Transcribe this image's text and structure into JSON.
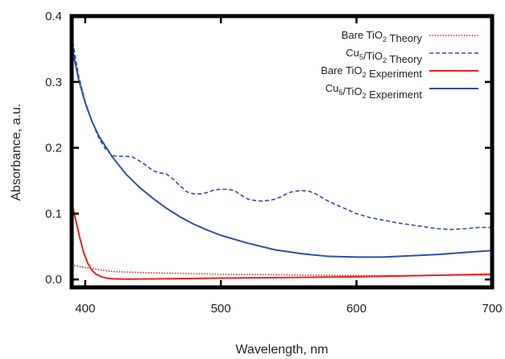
{
  "chart_data": {
    "type": "line",
    "title": "",
    "xlabel": "Wavelength, nm",
    "ylabel": "Absorbance, a.u.",
    "xlim": [
      390,
      700
    ],
    "ylim": [
      -0.012,
      0.4
    ],
    "xticks": [
      400,
      500,
      600,
      700
    ],
    "xtick_labels": [
      "400",
      "500",
      "600",
      "700"
    ],
    "yticks": [
      0.0,
      0.1,
      0.2,
      0.3,
      0.4
    ],
    "ytick_labels": [
      "0.0",
      "0.1",
      "0.2",
      "0.3",
      "0.4"
    ],
    "grid": false,
    "legend_position": "top-right",
    "series": [
      {
        "name": "Bare TiO2 Theory",
        "label_parts": [
          [
            "Bare TiO",
            ""
          ],
          [
            "2",
            "sub"
          ],
          [
            " Theory",
            ""
          ]
        ],
        "color": "#e8221f",
        "style": "dotted",
        "x": [
          390,
          400,
          420,
          450,
          500,
          550,
          600,
          650,
          700
        ],
        "y": [
          0.022,
          0.018,
          0.012,
          0.01,
          0.008,
          0.007,
          0.006,
          0.006,
          0.007
        ]
      },
      {
        "name": "Cu5/TiO2 Theory",
        "label_parts": [
          [
            "Cu",
            ""
          ],
          [
            "5",
            "sub"
          ],
          [
            "/TiO",
            ""
          ],
          [
            "2",
            "sub"
          ],
          [
            " Theory",
            ""
          ]
        ],
        "color": "#2e4fa3",
        "style": "dashed",
        "x": [
          390,
          395,
          400,
          405,
          410,
          415,
          420,
          425,
          430,
          435,
          440,
          445,
          450,
          455,
          460,
          465,
          470,
          475,
          480,
          485,
          490,
          495,
          500,
          505,
          510,
          515,
          520,
          525,
          530,
          535,
          540,
          545,
          550,
          555,
          560,
          565,
          570,
          575,
          580,
          590,
          600,
          610,
          620,
          630,
          640,
          650,
          660,
          670,
          680,
          690,
          700
        ],
        "y": [
          0.37,
          0.31,
          0.27,
          0.24,
          0.215,
          0.198,
          0.188,
          0.187,
          0.187,
          0.186,
          0.18,
          0.173,
          0.165,
          0.162,
          0.16,
          0.152,
          0.142,
          0.133,
          0.13,
          0.13,
          0.132,
          0.136,
          0.137,
          0.137,
          0.135,
          0.128,
          0.122,
          0.12,
          0.119,
          0.12,
          0.122,
          0.126,
          0.132,
          0.134,
          0.135,
          0.134,
          0.13,
          0.124,
          0.118,
          0.109,
          0.1,
          0.094,
          0.09,
          0.086,
          0.083,
          0.08,
          0.077,
          0.076,
          0.077,
          0.079,
          0.079
        ]
      },
      {
        "name": "Bare TiO2 Experiment",
        "label_parts": [
          [
            "Bare TiO",
            ""
          ],
          [
            "2",
            "sub"
          ],
          [
            " Experiment",
            ""
          ]
        ],
        "color": "#e8221f",
        "style": "solid",
        "x": [
          390,
          393,
          396,
          399,
          402,
          405,
          408,
          412,
          416,
          420,
          430,
          450,
          500,
          550,
          600,
          650,
          700
        ],
        "y": [
          0.117,
          0.09,
          0.063,
          0.04,
          0.024,
          0.014,
          0.008,
          0.004,
          0.002,
          0.001,
          0.0005,
          0.0008,
          0.002,
          0.003,
          0.004,
          0.006,
          0.008
        ]
      },
      {
        "name": "Cu5/TiO2 Experiment",
        "label_parts": [
          [
            "Cu",
            ""
          ],
          [
            "5",
            "sub"
          ],
          [
            "/TiO",
            ""
          ],
          [
            "2",
            "sub"
          ],
          [
            " Experiment",
            ""
          ]
        ],
        "color": "#2e4fa3",
        "style": "solid",
        "x": [
          390,
          395,
          400,
          405,
          410,
          420,
          430,
          440,
          450,
          460,
          470,
          480,
          490,
          500,
          520,
          540,
          560,
          580,
          600,
          620,
          640,
          660,
          680,
          700
        ],
        "y": [
          0.355,
          0.305,
          0.268,
          0.24,
          0.218,
          0.186,
          0.16,
          0.14,
          0.123,
          0.108,
          0.095,
          0.084,
          0.075,
          0.067,
          0.055,
          0.045,
          0.039,
          0.035,
          0.034,
          0.034,
          0.036,
          0.038,
          0.041,
          0.044
        ]
      }
    ]
  }
}
